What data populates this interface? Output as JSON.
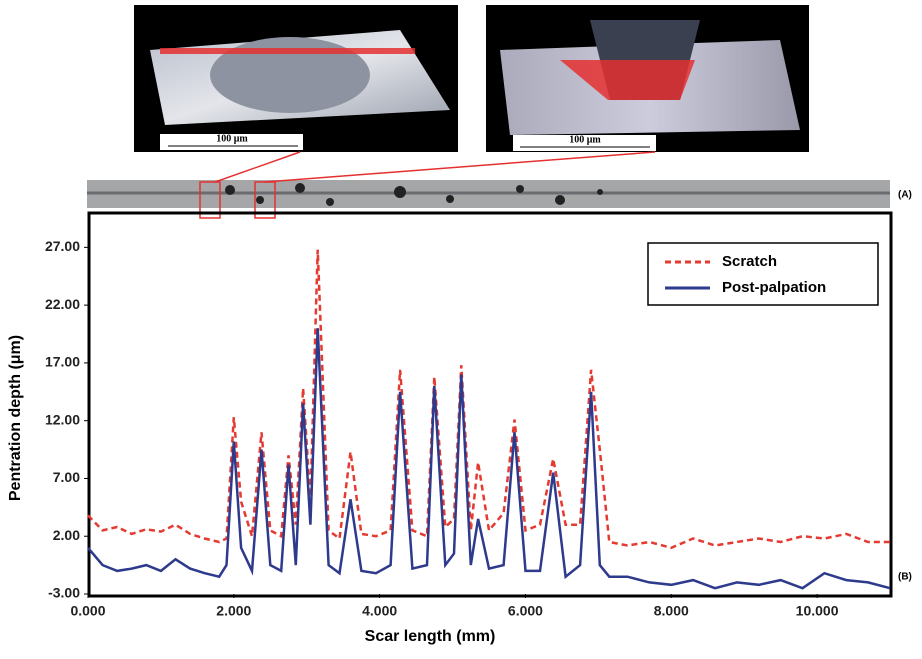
{
  "images": {
    "left_scale": "100 μm",
    "right_scale": "100 μm",
    "strip_label": "(A)",
    "chart_label": "(B)"
  },
  "chart_data": {
    "type": "line",
    "xlabel": "Scar length (mm)",
    "ylabel": "Pentration depth (μm)",
    "xlim": [
      0,
      11
    ],
    "ylim": [
      -3,
      29.8
    ],
    "xticks": [
      {
        "value": 0,
        "label": "0.000"
      },
      {
        "value": 2,
        "label": "2.000"
      },
      {
        "value": 4,
        "label": "4.000"
      },
      {
        "value": 6,
        "label": "6.000"
      },
      {
        "value": 8,
        "label": "8.000"
      },
      {
        "value": 10,
        "label": "10.000"
      }
    ],
    "yticks": [
      {
        "value": -3,
        "label": "-3.00"
      },
      {
        "value": 2,
        "label": "2.00"
      },
      {
        "value": 7,
        "label": "7.00"
      },
      {
        "value": 12,
        "label": "12.00"
      },
      {
        "value": 17,
        "label": "17.00"
      },
      {
        "value": 22,
        "label": "22.00"
      },
      {
        "value": 27,
        "label": "27.00"
      }
    ],
    "legend": "upper right",
    "x": [
      0,
      0.2,
      0.4,
      0.6,
      0.8,
      1.0,
      1.2,
      1.4,
      1.6,
      1.8,
      1.9,
      2.0,
      2.1,
      2.25,
      2.38,
      2.5,
      2.65,
      2.75,
      2.85,
      2.95,
      3.05,
      3.15,
      3.3,
      3.45,
      3.6,
      3.75,
      3.95,
      4.15,
      4.28,
      4.45,
      4.65,
      4.75,
      4.9,
      5.02,
      5.12,
      5.25,
      5.35,
      5.5,
      5.7,
      5.85,
      6.0,
      6.2,
      6.38,
      6.55,
      6.75,
      6.9,
      7.02,
      7.15,
      7.4,
      7.7,
      8.0,
      8.3,
      8.6,
      8.9,
      9.2,
      9.5,
      9.8,
      10.1,
      10.4,
      10.7,
      11.0
    ],
    "series": [
      {
        "name": "Scratch",
        "color": "#e53a30",
        "dashed": true,
        "values": [
          3.8,
          2.5,
          2.8,
          2.2,
          2.6,
          2.4,
          3.0,
          2.2,
          1.8,
          1.5,
          1.8,
          12.3,
          5.0,
          2.0,
          11.0,
          2.5,
          2.0,
          9.0,
          3.0,
          14.8,
          5.0,
          26.8,
          2.5,
          1.8,
          9.3,
          2.2,
          2.0,
          2.5,
          16.4,
          2.5,
          2.0,
          15.8,
          2.8,
          3.5,
          16.8,
          2.5,
          8.4,
          2.5,
          4.0,
          12.1,
          2.5,
          3.0,
          8.7,
          3.0,
          3.0,
          16.4,
          9.5,
          1.5,
          1.2,
          1.5,
          1.0,
          1.8,
          1.2,
          1.5,
          1.8,
          1.5,
          2.0,
          1.8,
          2.2,
          1.5,
          1.5
        ]
      },
      {
        "name": "Post-palpation",
        "color": "#2e3a8c",
        "dashed": false,
        "values": [
          1.0,
          -0.5,
          -1.0,
          -0.8,
          -0.5,
          -1.0,
          0.0,
          -0.8,
          -1.2,
          -1.5,
          -0.5,
          10.2,
          1.0,
          -1.0,
          9.5,
          -0.5,
          -1.0,
          8.2,
          -0.5,
          13.5,
          3.0,
          20.0,
          -0.5,
          -1.2,
          5.2,
          -1.0,
          -1.2,
          -0.5,
          14.5,
          -0.8,
          -0.5,
          15.0,
          -0.5,
          0.5,
          16.0,
          -0.5,
          3.5,
          -0.8,
          -0.5,
          11.0,
          -1.0,
          -1.0,
          7.5,
          -1.5,
          -0.5,
          14.5,
          -0.5,
          -1.5,
          -1.5,
          -2.0,
          -2.2,
          -1.8,
          -2.5,
          -2.0,
          -2.2,
          -1.8,
          -2.5,
          -1.2,
          -1.8,
          -2.0,
          -2.5
        ]
      }
    ]
  }
}
